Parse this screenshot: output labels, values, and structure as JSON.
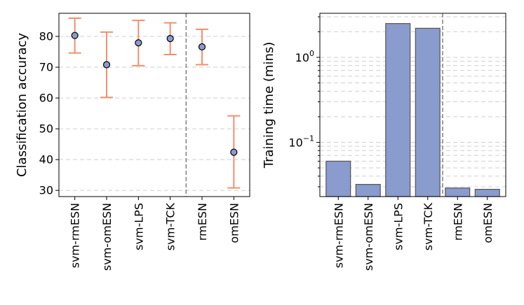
{
  "chart_data": [
    {
      "type": "scatter",
      "subtype": "errorbar",
      "ylabel": "Classification accuracy",
      "categories": [
        "svm-rmESN",
        "svm-omESN",
        "svm-LPS",
        "svm-TCK",
        "rmESN",
        "omESN"
      ],
      "values": [
        80.3,
        70.8,
        77.9,
        79.3,
        76.6,
        42.4
      ],
      "err_low": [
        74.6,
        60.2,
        70.5,
        74.1,
        70.8,
        30.8
      ],
      "err_high": [
        85.9,
        81.4,
        85.2,
        84.4,
        82.3,
        54.2
      ],
      "ylim": [
        28,
        87.5
      ],
      "yticks": [
        30,
        40,
        50,
        60,
        70,
        80
      ],
      "grid": true,
      "separator_after_index": 3,
      "colors": {
        "marker_fill": "#8a9bcd",
        "error_bar": "#f0906e"
      }
    },
    {
      "type": "bar",
      "ylabel": "Training time (mins)",
      "yscale": "log",
      "categories": [
        "svm-rmESN",
        "svm-omESN",
        "svm-LPS",
        "svm-TCK",
        "rmESN",
        "omESN"
      ],
      "values": [
        0.06,
        0.032,
        2.5,
        2.2,
        0.029,
        0.028
      ],
      "ylim": [
        0.023,
        3.3
      ],
      "yticks": [
        {
          "value": 0.1,
          "base": "10",
          "exp": "−1"
        },
        {
          "value": 1,
          "base": "10",
          "exp": "0"
        }
      ],
      "grid": true,
      "separator_after_index": 3,
      "colors": {
        "bar_fill": "#8a9bcd",
        "bar_edge": "#555555"
      }
    }
  ]
}
